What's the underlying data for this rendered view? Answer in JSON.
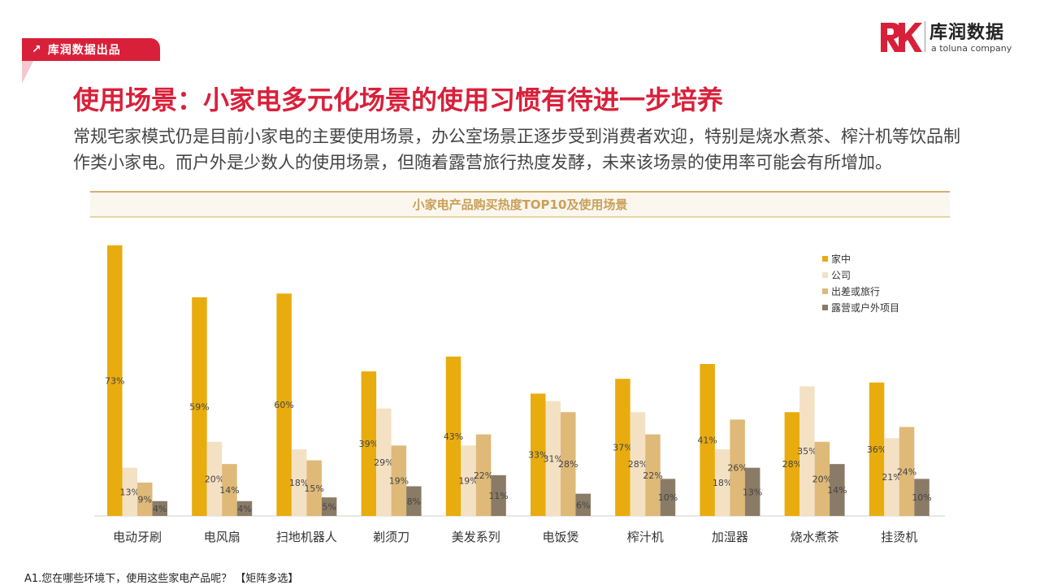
{
  "header": {
    "tag_text": "库润数据出品",
    "logo_brand": "库润数据",
    "logo_sub": "a toluna company"
  },
  "title": "使用场景：小家电多元化场景的使用习惯有待进一步培养",
  "description": "常规宅家模式仍是目前小家电的主要使用场景，办公室场景正逐步受到消费者欢迎，特别是烧水煮茶、榨汁机等饮品制作类小家电。而户外是少数人的使用场景，但随着露营旅行热度发酵，未来该场景的使用率可能会有所增加。",
  "footnote": "A1.您在哪些环境下，使用这些家电产品呢？ 【矩阵多选】",
  "colors": {
    "accent": "#d9203a",
    "home": "#e8ac0e",
    "office": "#f4e1c4",
    "travel": "#deb978",
    "outdoor": "#8a7b66"
  },
  "chart_data": {
    "type": "bar",
    "title": "小家电产品购买热度TOP10及使用场景",
    "categories": [
      "电动牙刷",
      "电风扇",
      "扫地机器人",
      "剃须刀",
      "美发系列",
      "电饭煲",
      "榨汁机",
      "加湿器",
      "烧水煮茶",
      "挂烫机"
    ],
    "series": [
      {
        "name": "家中",
        "color": "#e8ac0e",
        "values": [
          73,
          59,
          60,
          39,
          43,
          33,
          37,
          41,
          28,
          36
        ]
      },
      {
        "name": "公司",
        "color": "#f4e1c4",
        "values": [
          13,
          20,
          18,
          29,
          19,
          31,
          28,
          18,
          35,
          21
        ]
      },
      {
        "name": "出差或旅行",
        "color": "#deb978",
        "values": [
          9,
          14,
          15,
          19,
          22,
          28,
          22,
          26,
          20,
          24
        ]
      },
      {
        "name": "露营或户外项目",
        "color": "#8a7b66",
        "values": [
          4,
          4,
          5,
          8,
          11,
          6,
          10,
          13,
          14,
          10
        ]
      }
    ],
    "value_suffix": "%",
    "ylim": [
      0,
      75
    ],
    "legend": "top-right",
    "grid": false
  }
}
